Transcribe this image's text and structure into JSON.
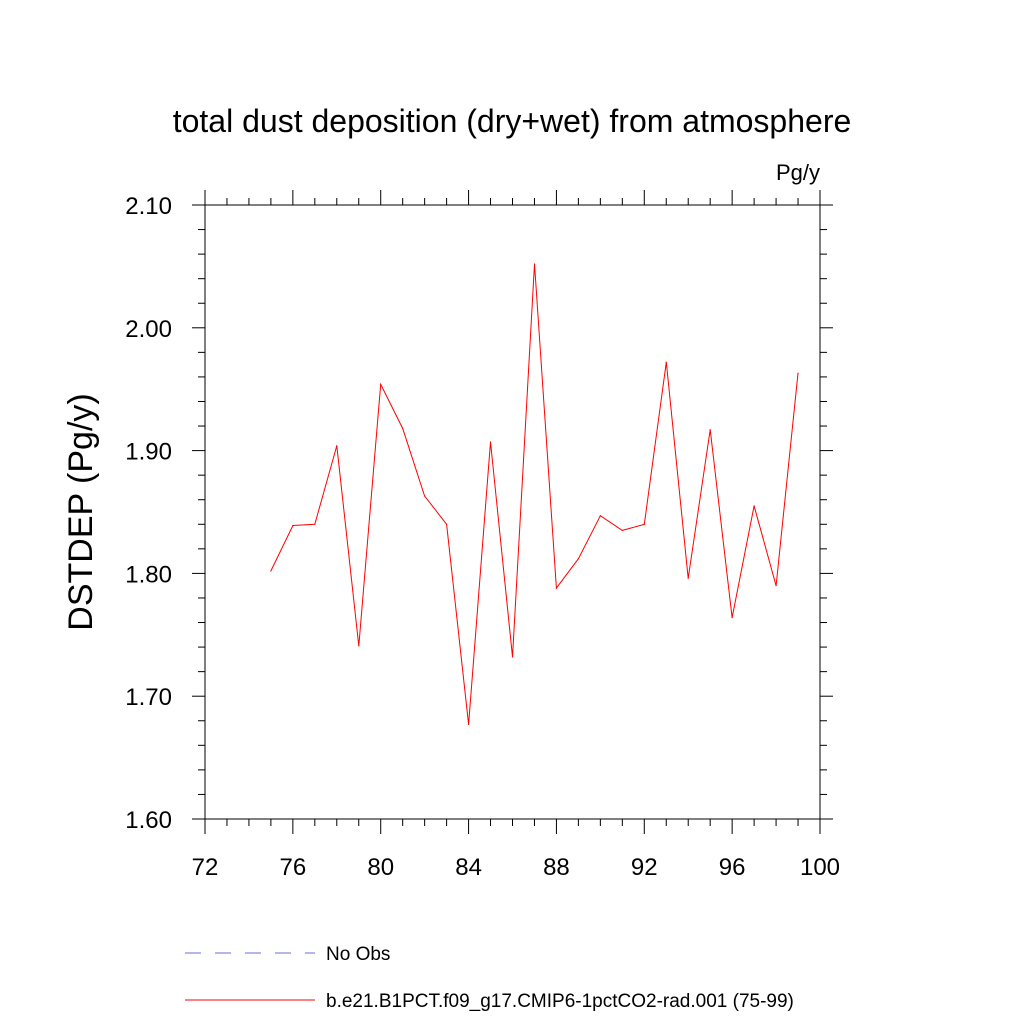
{
  "chart_data": {
    "type": "line",
    "title": "total dust deposition (dry+wet) from atmosphere",
    "units_label": "Pg/y",
    "xlabel": "",
    "ylabel": "DSTDEP  (Pg/y)",
    "xlim": [
      72,
      100
    ],
    "ylim": [
      1.6,
      2.1
    ],
    "x_ticks": [
      72,
      76,
      80,
      84,
      88,
      92,
      96,
      100
    ],
    "x_tick_labels": [
      "72",
      "76",
      "80",
      "84",
      "88",
      "92",
      "96",
      "100"
    ],
    "y_ticks": [
      1.6,
      1.7,
      1.8,
      1.9,
      2.0,
      2.1
    ],
    "y_tick_labels": [
      "1.60",
      "1.70",
      "1.80",
      "1.90",
      "2.00",
      "2.10"
    ],
    "grid": false,
    "legend_position": "bottom",
    "series": [
      {
        "name": "b.e21.B1PCT.f09_g17.CMIP6-1pctCO2-rad.001 (75-99)",
        "color": "#ff0000",
        "dash": "solid",
        "x": [
          75,
          76,
          77,
          78,
          79,
          80,
          81,
          82,
          83,
          84,
          85,
          86,
          87,
          88,
          89,
          90,
          91,
          92,
          93,
          94,
          95,
          96,
          97,
          98,
          99
        ],
        "y": [
          1.802,
          1.839,
          1.84,
          1.904,
          1.741,
          1.954,
          1.918,
          1.863,
          1.84,
          1.677,
          1.907,
          1.732,
          2.052,
          1.788,
          1.812,
          1.847,
          1.835,
          1.84,
          1.972,
          1.796,
          1.917,
          1.764,
          1.855,
          1.79,
          1.963
        ]
      }
    ],
    "legend": [
      {
        "label": "No Obs",
        "color": "#6b6bd6",
        "dash": "dashed"
      },
      {
        "label": "b.e21.B1PCT.f09_g17.CMIP6-1pctCO2-rad.001 (75-99)",
        "color": "#ff0000",
        "dash": "solid"
      }
    ]
  }
}
